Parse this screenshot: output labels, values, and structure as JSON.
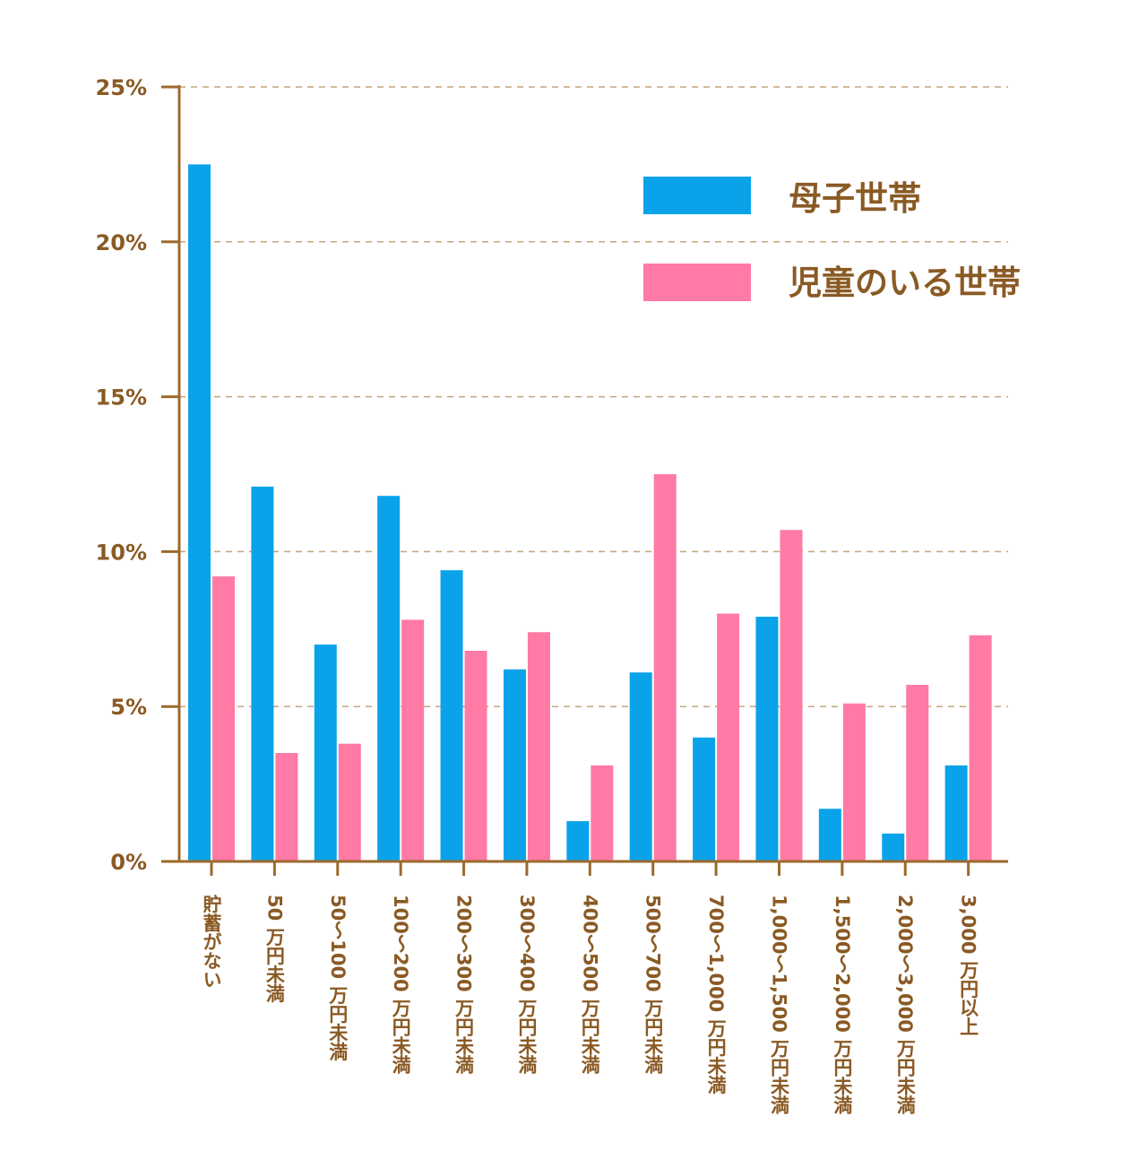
{
  "chart_data": {
    "type": "bar",
    "title": "",
    "xlabel": "",
    "ylabel": "",
    "ylim": [
      0,
      25
    ],
    "yticks": [
      0,
      5,
      10,
      15,
      20,
      25
    ],
    "ytick_labels": [
      "0%",
      "5%",
      "10%",
      "15%",
      "20%",
      "25%"
    ],
    "grid": true,
    "legend_position": "top-right",
    "categories": [
      "貯蓄がない",
      "50 万円未満",
      "50～100 万円未満",
      "100～200 万円未満",
      "200～300 万円未満",
      "300～400 万円未満",
      "400～500 万円未満",
      "500～700 万円未満",
      "700～1,000 万円未満",
      "1,000～1,500 万円未満",
      "1,500～2,000 万円未満",
      "2,000～3,000 万円未満",
      "3,000 万円以上"
    ],
    "series": [
      {
        "name": "母子世帯",
        "color": "#0AA3EA",
        "values": [
          22.5,
          12.1,
          7.0,
          11.8,
          9.4,
          6.2,
          1.3,
          6.1,
          4.0,
          7.9,
          1.7,
          0.9,
          3.1
        ]
      },
      {
        "name": "児童のいる世帯",
        "color": "#FF7AA4",
        "values": [
          9.2,
          3.5,
          3.8,
          7.8,
          6.8,
          7.4,
          3.1,
          12.5,
          8.0,
          10.7,
          5.1,
          5.7,
          7.3
        ]
      }
    ]
  },
  "colors": {
    "axis": "#9C6A2C",
    "grid": "#C4A47E",
    "text": "#8A5A24"
  }
}
